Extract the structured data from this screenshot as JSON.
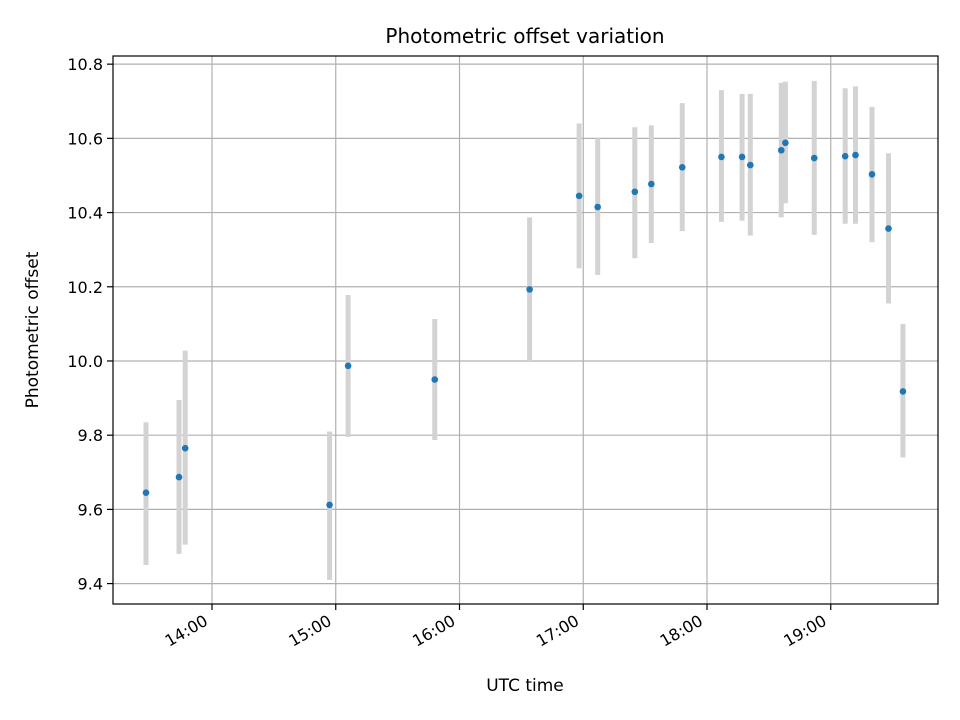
{
  "chart_data": {
    "type": "scatter",
    "title": "Photometric offset variation",
    "xlabel": "UTC time",
    "ylabel": "Photometric offset",
    "xlim": [
      "13:12",
      "19:52"
    ],
    "ylim": [
      9.345,
      10.822
    ],
    "xticks": [
      "14:00",
      "15:00",
      "16:00",
      "17:00",
      "18:00",
      "19:00"
    ],
    "yticks": [
      9.4,
      9.6,
      9.8,
      10.0,
      10.2,
      10.4,
      10.6,
      10.8
    ],
    "grid": true,
    "colors": {
      "point": "#1f77b4",
      "errorbar": "#d3d3d3",
      "grid": "#b0b0b0"
    },
    "points": [
      {
        "x": "13:28",
        "y": 9.645,
        "ylow": 9.45,
        "yhigh": 9.835
      },
      {
        "x": "13:44",
        "y": 9.687,
        "ylow": 9.48,
        "yhigh": 9.895
      },
      {
        "x": "13:47",
        "y": 9.765,
        "ylow": 9.505,
        "yhigh": 10.028
      },
      {
        "x": "14:57",
        "y": 9.612,
        "ylow": 9.41,
        "yhigh": 9.81
      },
      {
        "x": "15:06",
        "y": 9.987,
        "ylow": 9.795,
        "yhigh": 10.178
      },
      {
        "x": "15:48",
        "y": 9.95,
        "ylow": 9.787,
        "yhigh": 10.113
      },
      {
        "x": "16:34",
        "y": 10.193,
        "ylow": 10.0,
        "yhigh": 10.387
      },
      {
        "x": "16:58",
        "y": 10.445,
        "ylow": 10.25,
        "yhigh": 10.64
      },
      {
        "x": "17:07",
        "y": 10.415,
        "ylow": 10.232,
        "yhigh": 10.6
      },
      {
        "x": "17:25",
        "y": 10.456,
        "ylow": 10.277,
        "yhigh": 10.63
      },
      {
        "x": "17:33",
        "y": 10.477,
        "ylow": 10.318,
        "yhigh": 10.635
      },
      {
        "x": "17:48",
        "y": 10.522,
        "ylow": 10.35,
        "yhigh": 10.695
      },
      {
        "x": "18:07",
        "y": 10.55,
        "ylow": 10.375,
        "yhigh": 10.73
      },
      {
        "x": "18:17",
        "y": 10.55,
        "ylow": 10.378,
        "yhigh": 10.72
      },
      {
        "x": "18:21",
        "y": 10.528,
        "ylow": 10.338,
        "yhigh": 10.72
      },
      {
        "x": "18:36",
        "y": 10.568,
        "ylow": 10.387,
        "yhigh": 10.75
      },
      {
        "x": "18:38",
        "y": 10.588,
        "ylow": 10.425,
        "yhigh": 10.753
      },
      {
        "x": "18:52",
        "y": 10.547,
        "ylow": 10.34,
        "yhigh": 10.755
      },
      {
        "x": "19:07",
        "y": 10.552,
        "ylow": 10.37,
        "yhigh": 10.735
      },
      {
        "x": "19:12",
        "y": 10.555,
        "ylow": 10.37,
        "yhigh": 10.74
      },
      {
        "x": "19:20",
        "y": 10.503,
        "ylow": 10.32,
        "yhigh": 10.685
      },
      {
        "x": "19:28",
        "y": 10.357,
        "ylow": 10.155,
        "yhigh": 10.56
      },
      {
        "x": "19:35",
        "y": 9.918,
        "ylow": 9.74,
        "yhigh": 10.1
      }
    ]
  }
}
